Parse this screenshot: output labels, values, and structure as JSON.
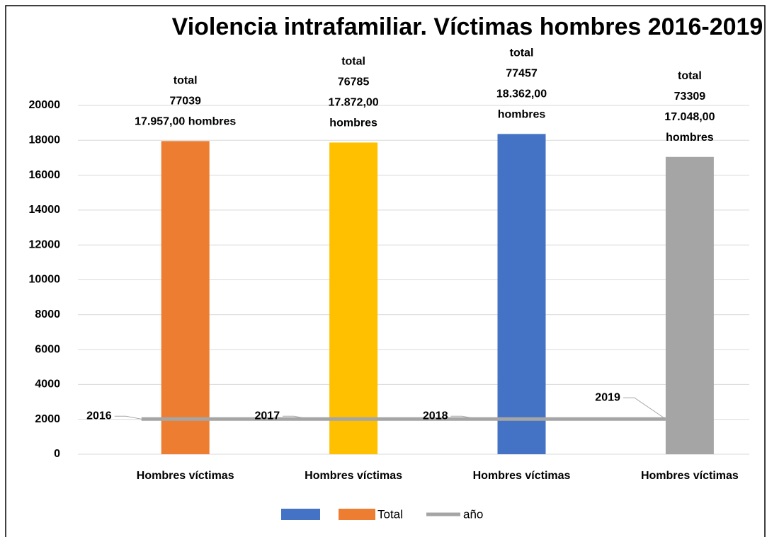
{
  "chart_data": {
    "type": "bar",
    "title": "Violencia intrafamiliar. Víctimas hombres 2016-2019",
    "categories": [
      "Hombres víctimas",
      "Hombres víctimas",
      "Hombres víctimas",
      "Hombres víctimas"
    ],
    "series": [
      {
        "name": "Total",
        "type": "bar",
        "colors": [
          "#ed7d31",
          "#ffc000",
          "#4472c4",
          "#a5a5a5"
        ],
        "values": [
          17957,
          17872,
          18362,
          17048
        ],
        "value_labels": [
          [
            "total",
            "77039",
            "17.957,00 hombres"
          ],
          [
            "total",
            "76785",
            "17.872,00",
            "hombres"
          ],
          [
            "total",
            "77457",
            "18.362,00",
            "hombres"
          ],
          [
            "total",
            "73309",
            "17.048,00",
            "hombres"
          ]
        ]
      },
      {
        "name": "año",
        "type": "line",
        "color": "#a5a5a5",
        "values": [
          2016,
          2017,
          2018,
          2019
        ]
      }
    ],
    "ylim": [
      0,
      20000
    ],
    "yticks": [
      0,
      2000,
      4000,
      6000,
      8000,
      10000,
      12000,
      14000,
      16000,
      18000,
      20000
    ],
    "grid": true
  }
}
